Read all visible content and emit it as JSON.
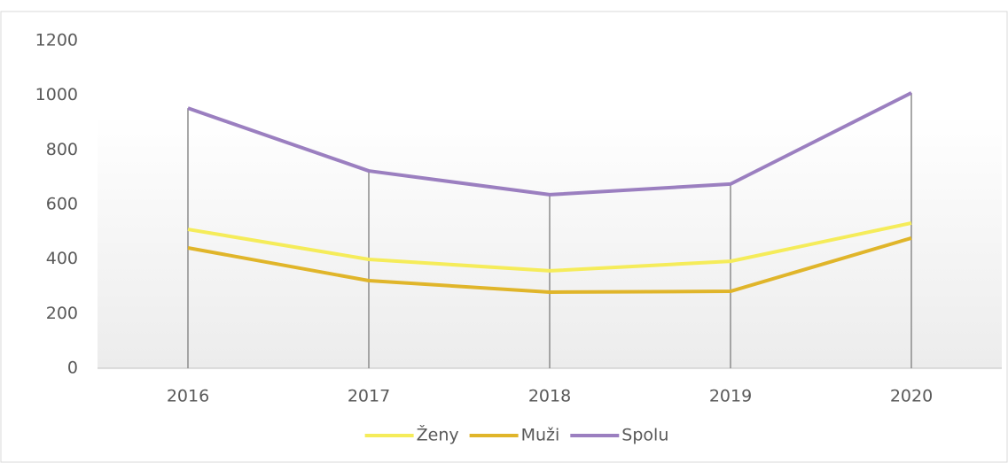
{
  "chart_data": {
    "type": "line",
    "categories": [
      "2016",
      "2017",
      "2018",
      "2019",
      "2020"
    ],
    "series": [
      {
        "name": "Ženy",
        "color": "#f5ec5a",
        "values": [
          509,
          399,
          357,
          392,
          532
        ]
      },
      {
        "name": "Muži",
        "color": "#e0b52a",
        "values": [
          441,
          321,
          279,
          282,
          477
        ]
      },
      {
        "name": "Spolu",
        "color": "#9b7fc0",
        "values": [
          953,
          723,
          636,
          675,
          1009
        ]
      }
    ],
    "ylim": [
      0,
      1200
    ],
    "yticks": [
      0,
      200,
      400,
      600,
      800,
      1000,
      1200
    ],
    "drop_lines": true,
    "legend": "bottom"
  }
}
